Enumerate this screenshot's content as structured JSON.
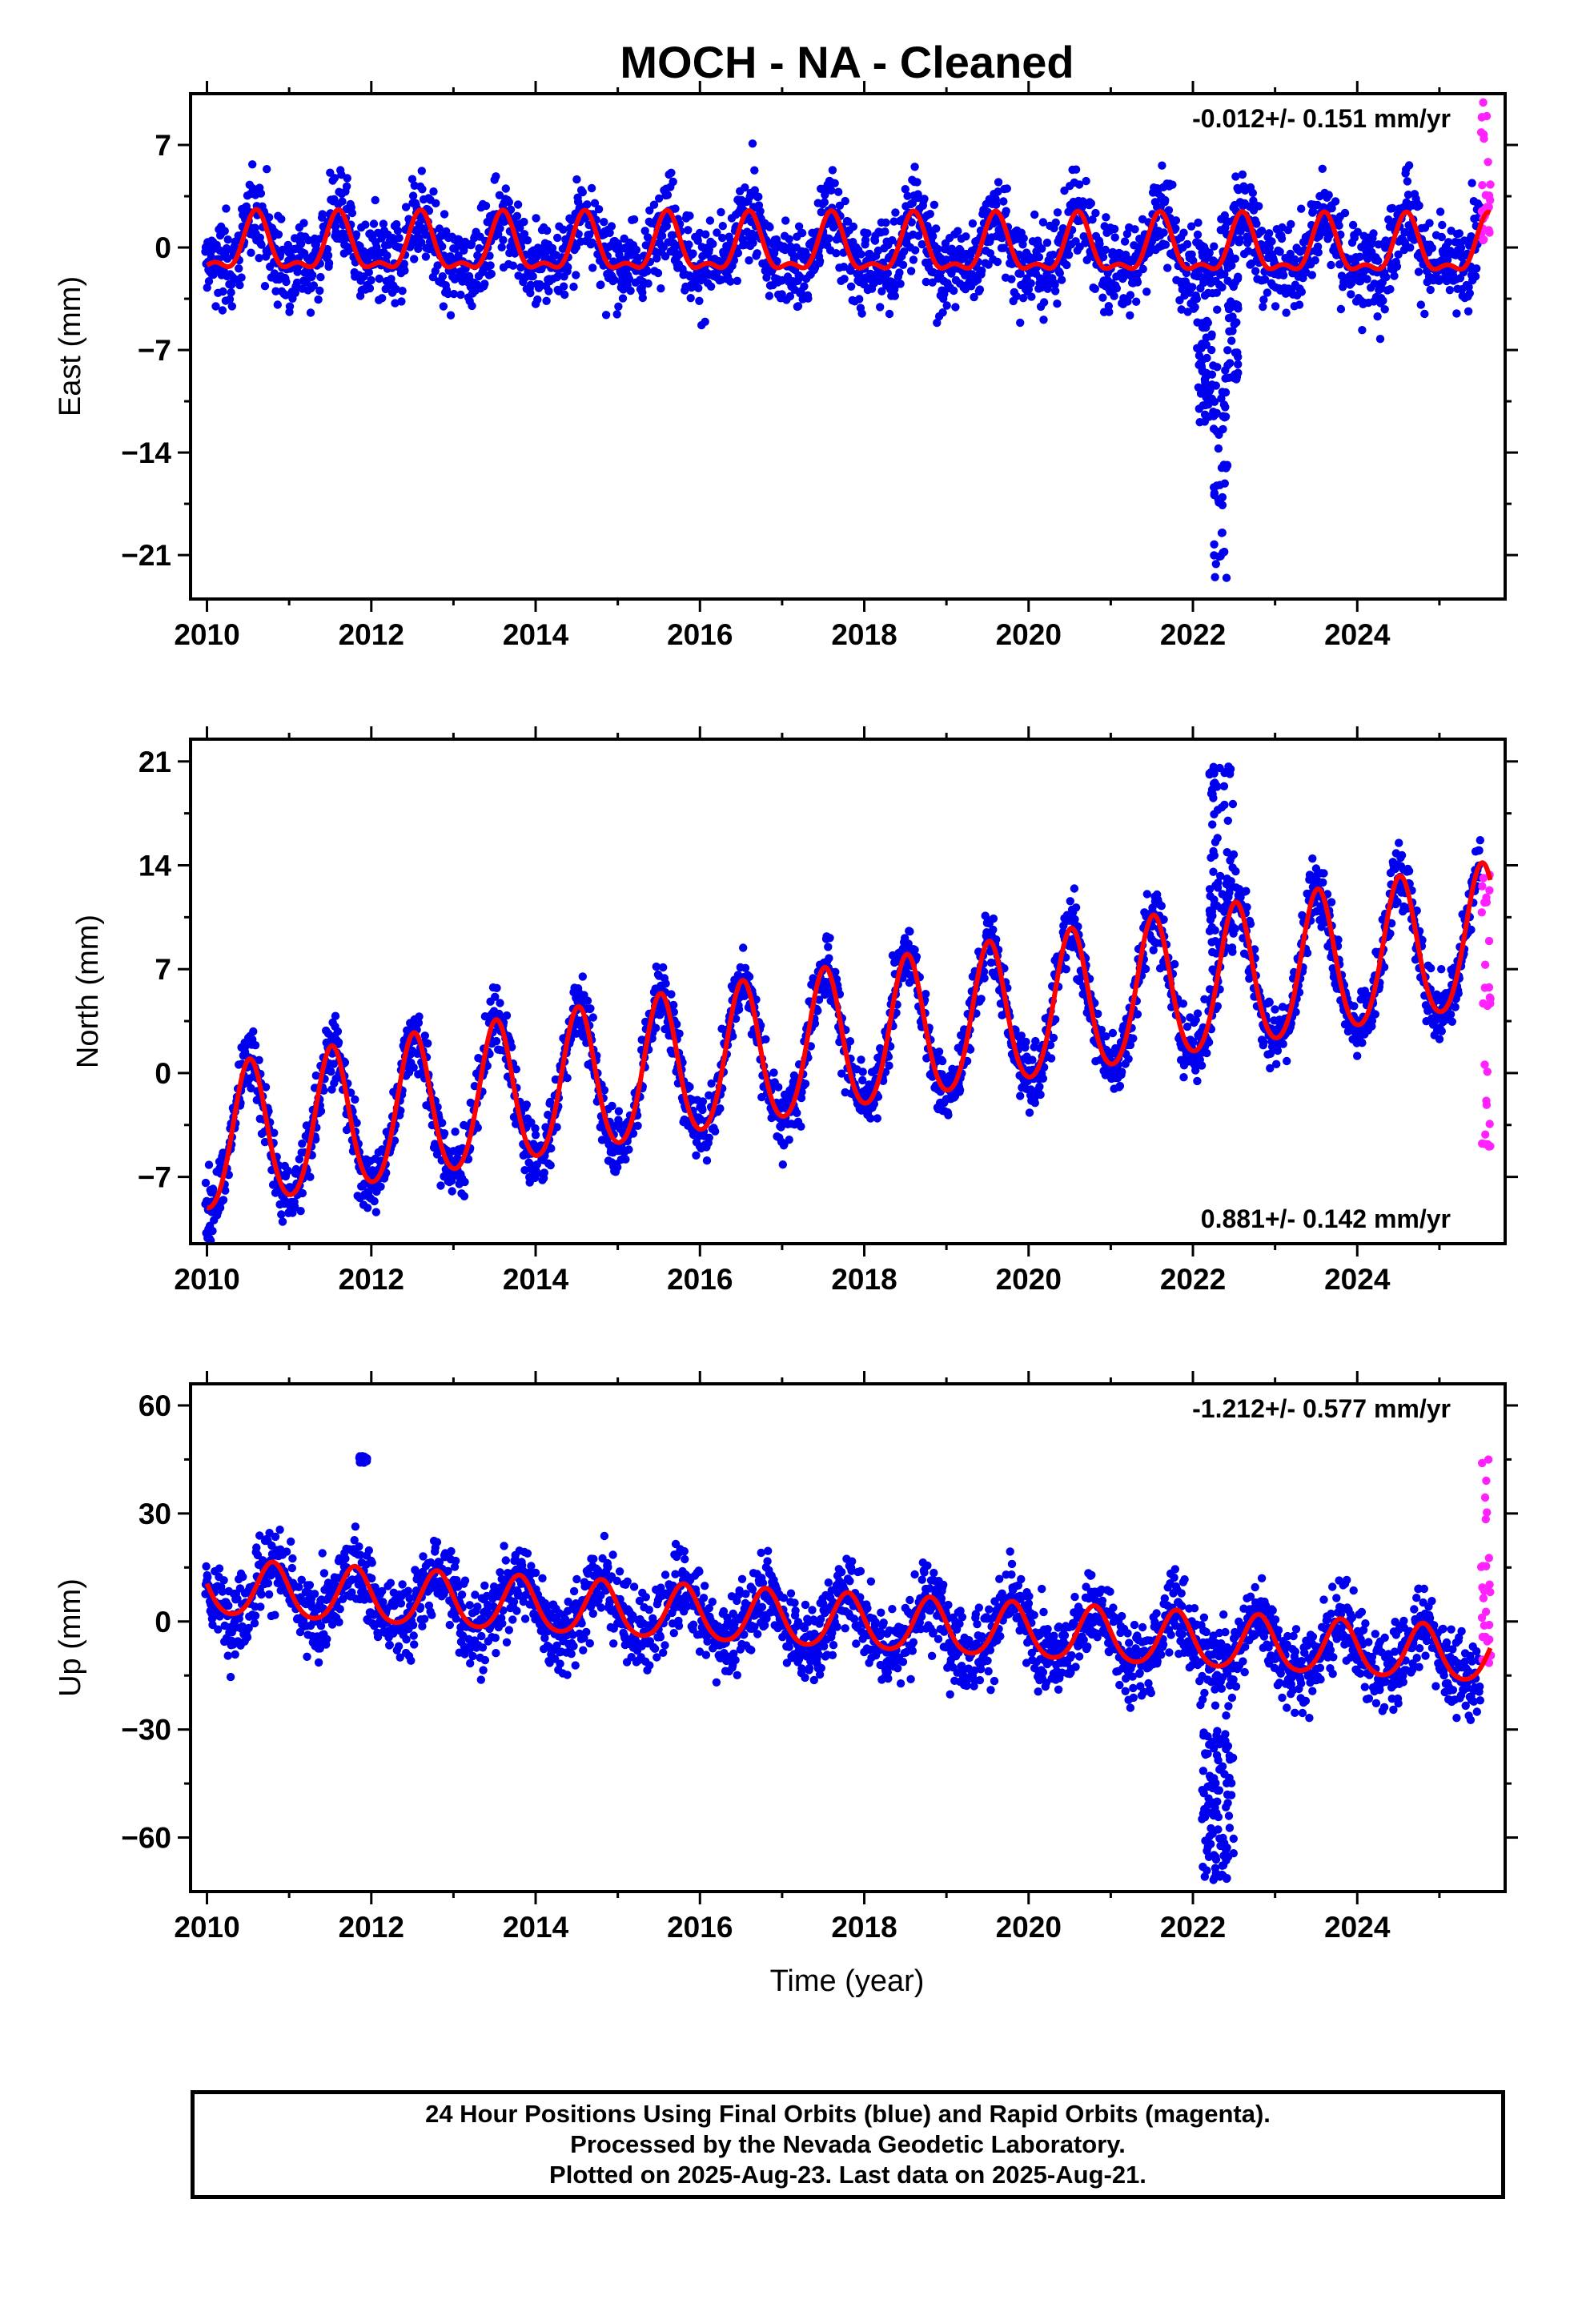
{
  "figure": {
    "title": "MOCH  - NA - Cleaned",
    "xlabel": "Time (year)",
    "caption": [
      "24 Hour Positions Using Final Orbits (blue) and Rapid Orbits (magenta).",
      "Processed by the Nevada Geodetic Laboratory.",
      "Plotted on 2025-Aug-23. Last data on 2025-Aug-21."
    ],
    "colors": {
      "final_orbits": "#0000ee",
      "rapid_orbits": "#ff22ff",
      "model_fit": "#ff0000"
    }
  },
  "chart_data": [
    {
      "type": "scatter",
      "component": "East",
      "ylabel": "East (mm)",
      "rate_label": "-0.012+/- 0.151 mm/yr",
      "rate_position": "top-right",
      "xlim": [
        2009.8,
        2025.8
      ],
      "ylim": [
        -24,
        10.5
      ],
      "xticks": [
        2010,
        2012,
        2014,
        2016,
        2018,
        2020,
        2022,
        2024
      ],
      "yticks": [
        7,
        0,
        -7,
        -14,
        -21
      ],
      "ytick_labels": [
        "7",
        "0",
        "−7",
        "−14",
        "−21"
      ],
      "model": {
        "trend_mm_per_yr": -0.012,
        "annual_amplitude_mm": 1.8,
        "annual_phase_peak_year_fraction": 0.6,
        "semiannual_amplitude_mm": 0.8,
        "intercept_mm": 0.0
      },
      "noise_sd_mm": 1.5,
      "anomalies": [
        {
          "x_range": [
            2022.05,
            2022.25
          ],
          "y_range": [
            -12,
            -5
          ]
        },
        {
          "x_range": [
            2022.25,
            2022.42
          ],
          "y_range": [
            -23,
            -8
          ]
        },
        {
          "x_range": [
            2022.42,
            2022.55
          ],
          "y_range": [
            -9,
            -2
          ]
        }
      ],
      "rapid_points": {
        "x_range": [
          2025.5,
          2025.63
        ],
        "y_range": [
          0.5,
          10
        ]
      },
      "series": [
        {
          "name": "Final Orbits",
          "color": "#0000ee"
        },
        {
          "name": "Rapid Orbits",
          "color": "#ff22ff"
        },
        {
          "name": "Model",
          "color": "#ff0000"
        }
      ]
    },
    {
      "type": "scatter",
      "component": "North",
      "ylabel": "North (mm)",
      "rate_label": "0.881+/- 0.142 mm/yr",
      "rate_position": "bottom-right",
      "xlim": [
        2009.8,
        2025.8
      ],
      "ylim": [
        -11.5,
        22.5
      ],
      "xticks": [
        2010,
        2012,
        2014,
        2016,
        2018,
        2020,
        2022,
        2024
      ],
      "yticks": [
        21,
        14,
        7,
        0,
        -7
      ],
      "ytick_labels": [
        "21",
        "14",
        "7",
        "0",
        "−7"
      ],
      "model": {
        "trend_mm_per_yr": 0.881,
        "annual_amplitude_mm": 4.8,
        "annual_phase_peak_year_fraction": 0.52,
        "semiannual_amplitude_mm": 0.5,
        "intercept_mm": -4.8
      },
      "noise_sd_mm": 1.1,
      "anomalies": [
        {
          "x_range": [
            2022.2,
            2022.5
          ],
          "y_range": [
            8,
            21
          ]
        }
      ],
      "rapid_points": {
        "x_range": [
          2025.5,
          2025.63
        ],
        "y_range": [
          -5,
          13.5
        ]
      },
      "series": [
        {
          "name": "Final Orbits",
          "color": "#0000ee"
        },
        {
          "name": "Rapid Orbits",
          "color": "#ff22ff"
        },
        {
          "name": "Model",
          "color": "#ff0000"
        }
      ]
    },
    {
      "type": "scatter",
      "component": "Up",
      "ylabel": "Up (mm)",
      "rate_label": "-1.212+/- 0.577 mm/yr",
      "rate_position": "top-right",
      "xlim": [
        2009.8,
        2025.8
      ],
      "ylim": [
        -75,
        66
      ],
      "xticks": [
        2010,
        2012,
        2014,
        2016,
        2018,
        2020,
        2022,
        2024
      ],
      "yticks": [
        60,
        30,
        0,
        -30,
        -60
      ],
      "ytick_labels": [
        "60",
        "30",
        "0",
        "−30",
        "−60"
      ],
      "model": {
        "trend_mm_per_yr": -1.212,
        "annual_amplitude_mm": 7.5,
        "annual_phase_peak_year_fraction": 0.8,
        "semiannual_amplitude_mm": 1.0,
        "intercept_mm": 9.0
      },
      "noise_sd_mm": 5.5,
      "anomalies": [
        {
          "x_range": [
            2022.1,
            2022.5
          ],
          "y_range": [
            -72,
            -30
          ]
        },
        {
          "x_range": [
            2011.85,
            2011.95
          ],
          "y_range": [
            44,
            46
          ]
        }
      ],
      "rapid_points": {
        "x_range": [
          2025.5,
          2025.63
        ],
        "y_range": [
          -12,
          63
        ]
      },
      "series": [
        {
          "name": "Final Orbits",
          "color": "#0000ee"
        },
        {
          "name": "Rapid Orbits",
          "color": "#ff22ff"
        },
        {
          "name": "Model",
          "color": "#ff0000"
        }
      ]
    }
  ]
}
